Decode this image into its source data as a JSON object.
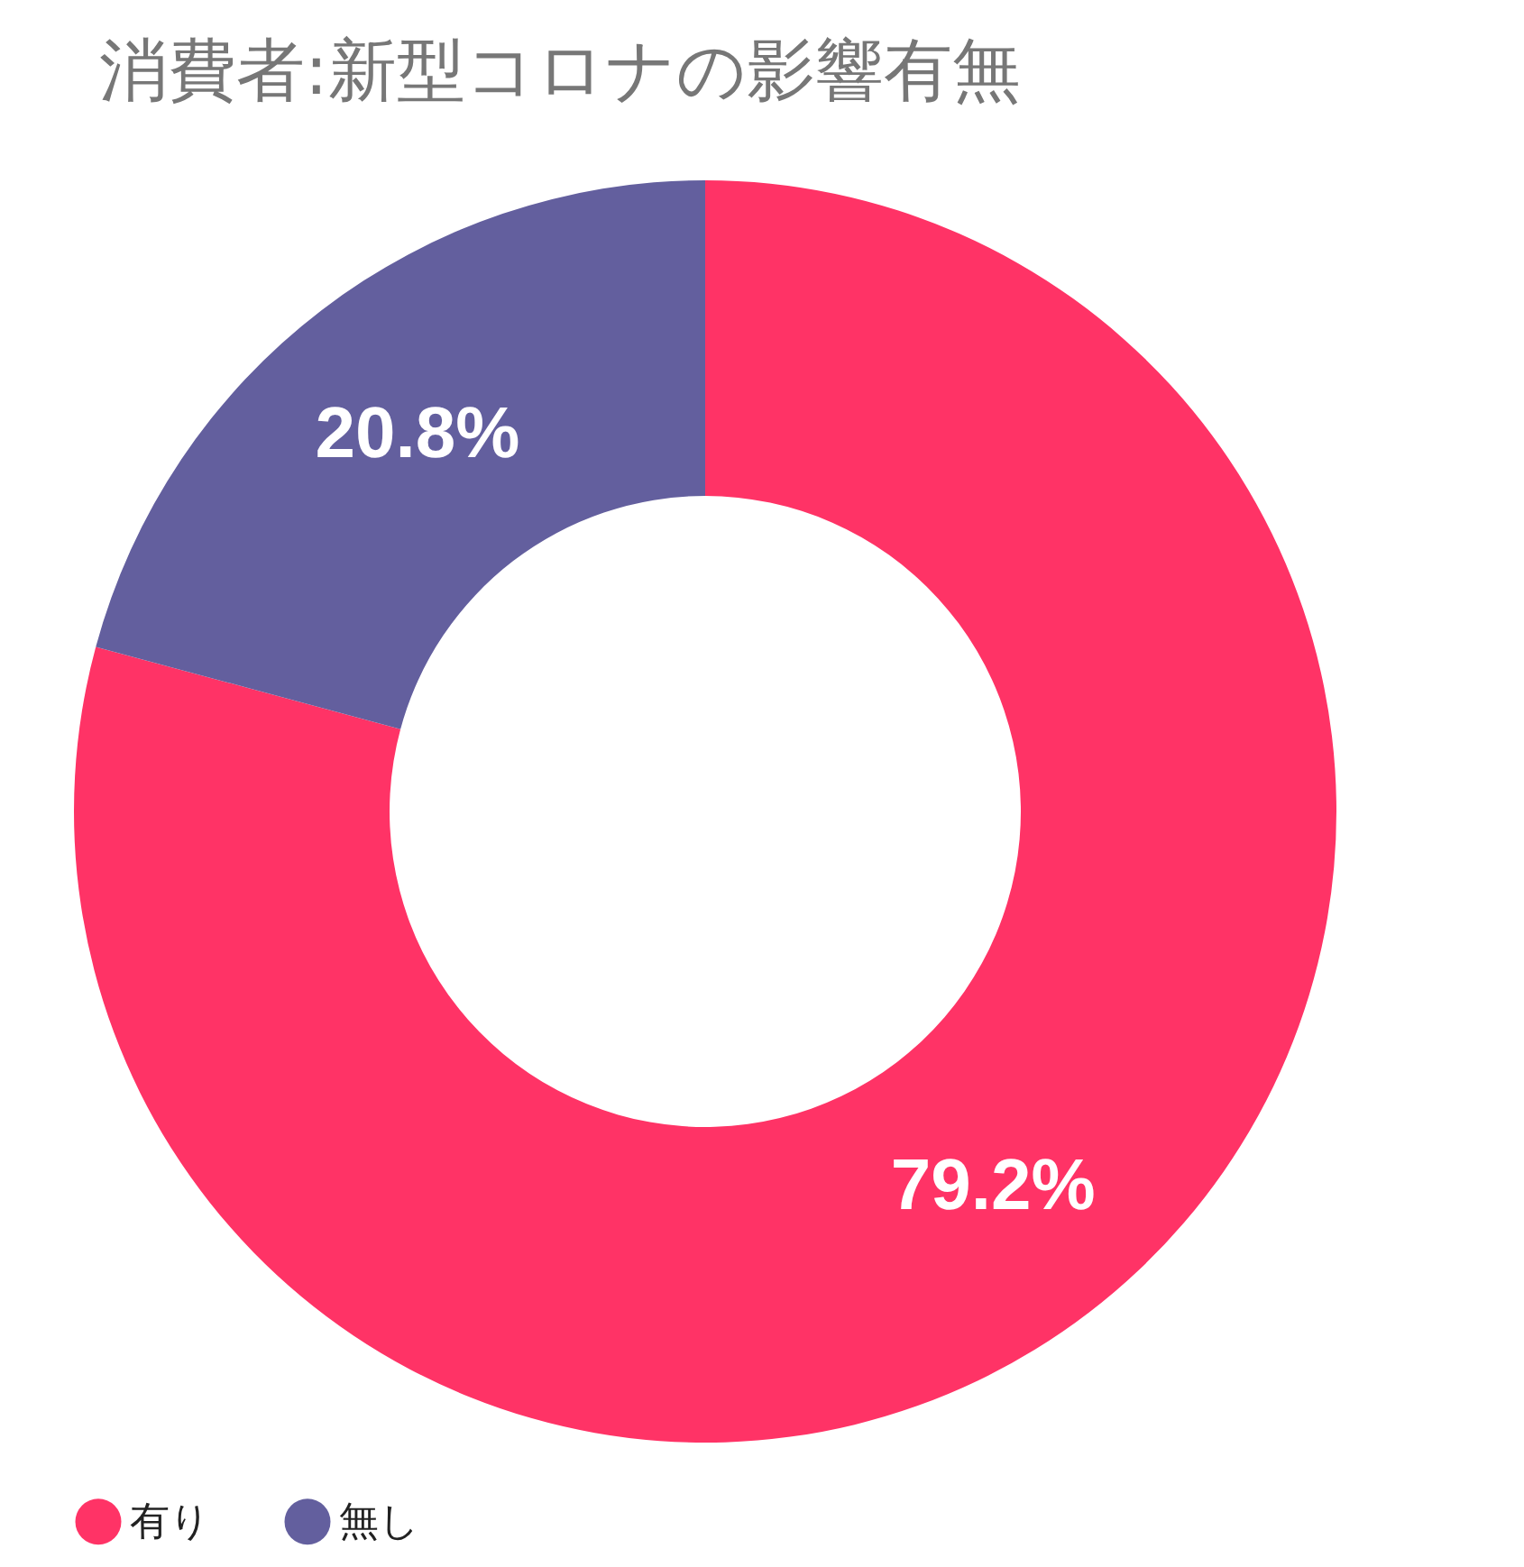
{
  "chart_data": {
    "type": "donut",
    "title": "消費者:新型コロナの影響有無",
    "categories": [
      "有り",
      "無し"
    ],
    "values": [
      79.2,
      20.8
    ],
    "colors": [
      "#ff3366",
      "#635f9e"
    ],
    "value_labels": [
      "79.2%",
      "20.8%"
    ],
    "legend": "bottom"
  }
}
